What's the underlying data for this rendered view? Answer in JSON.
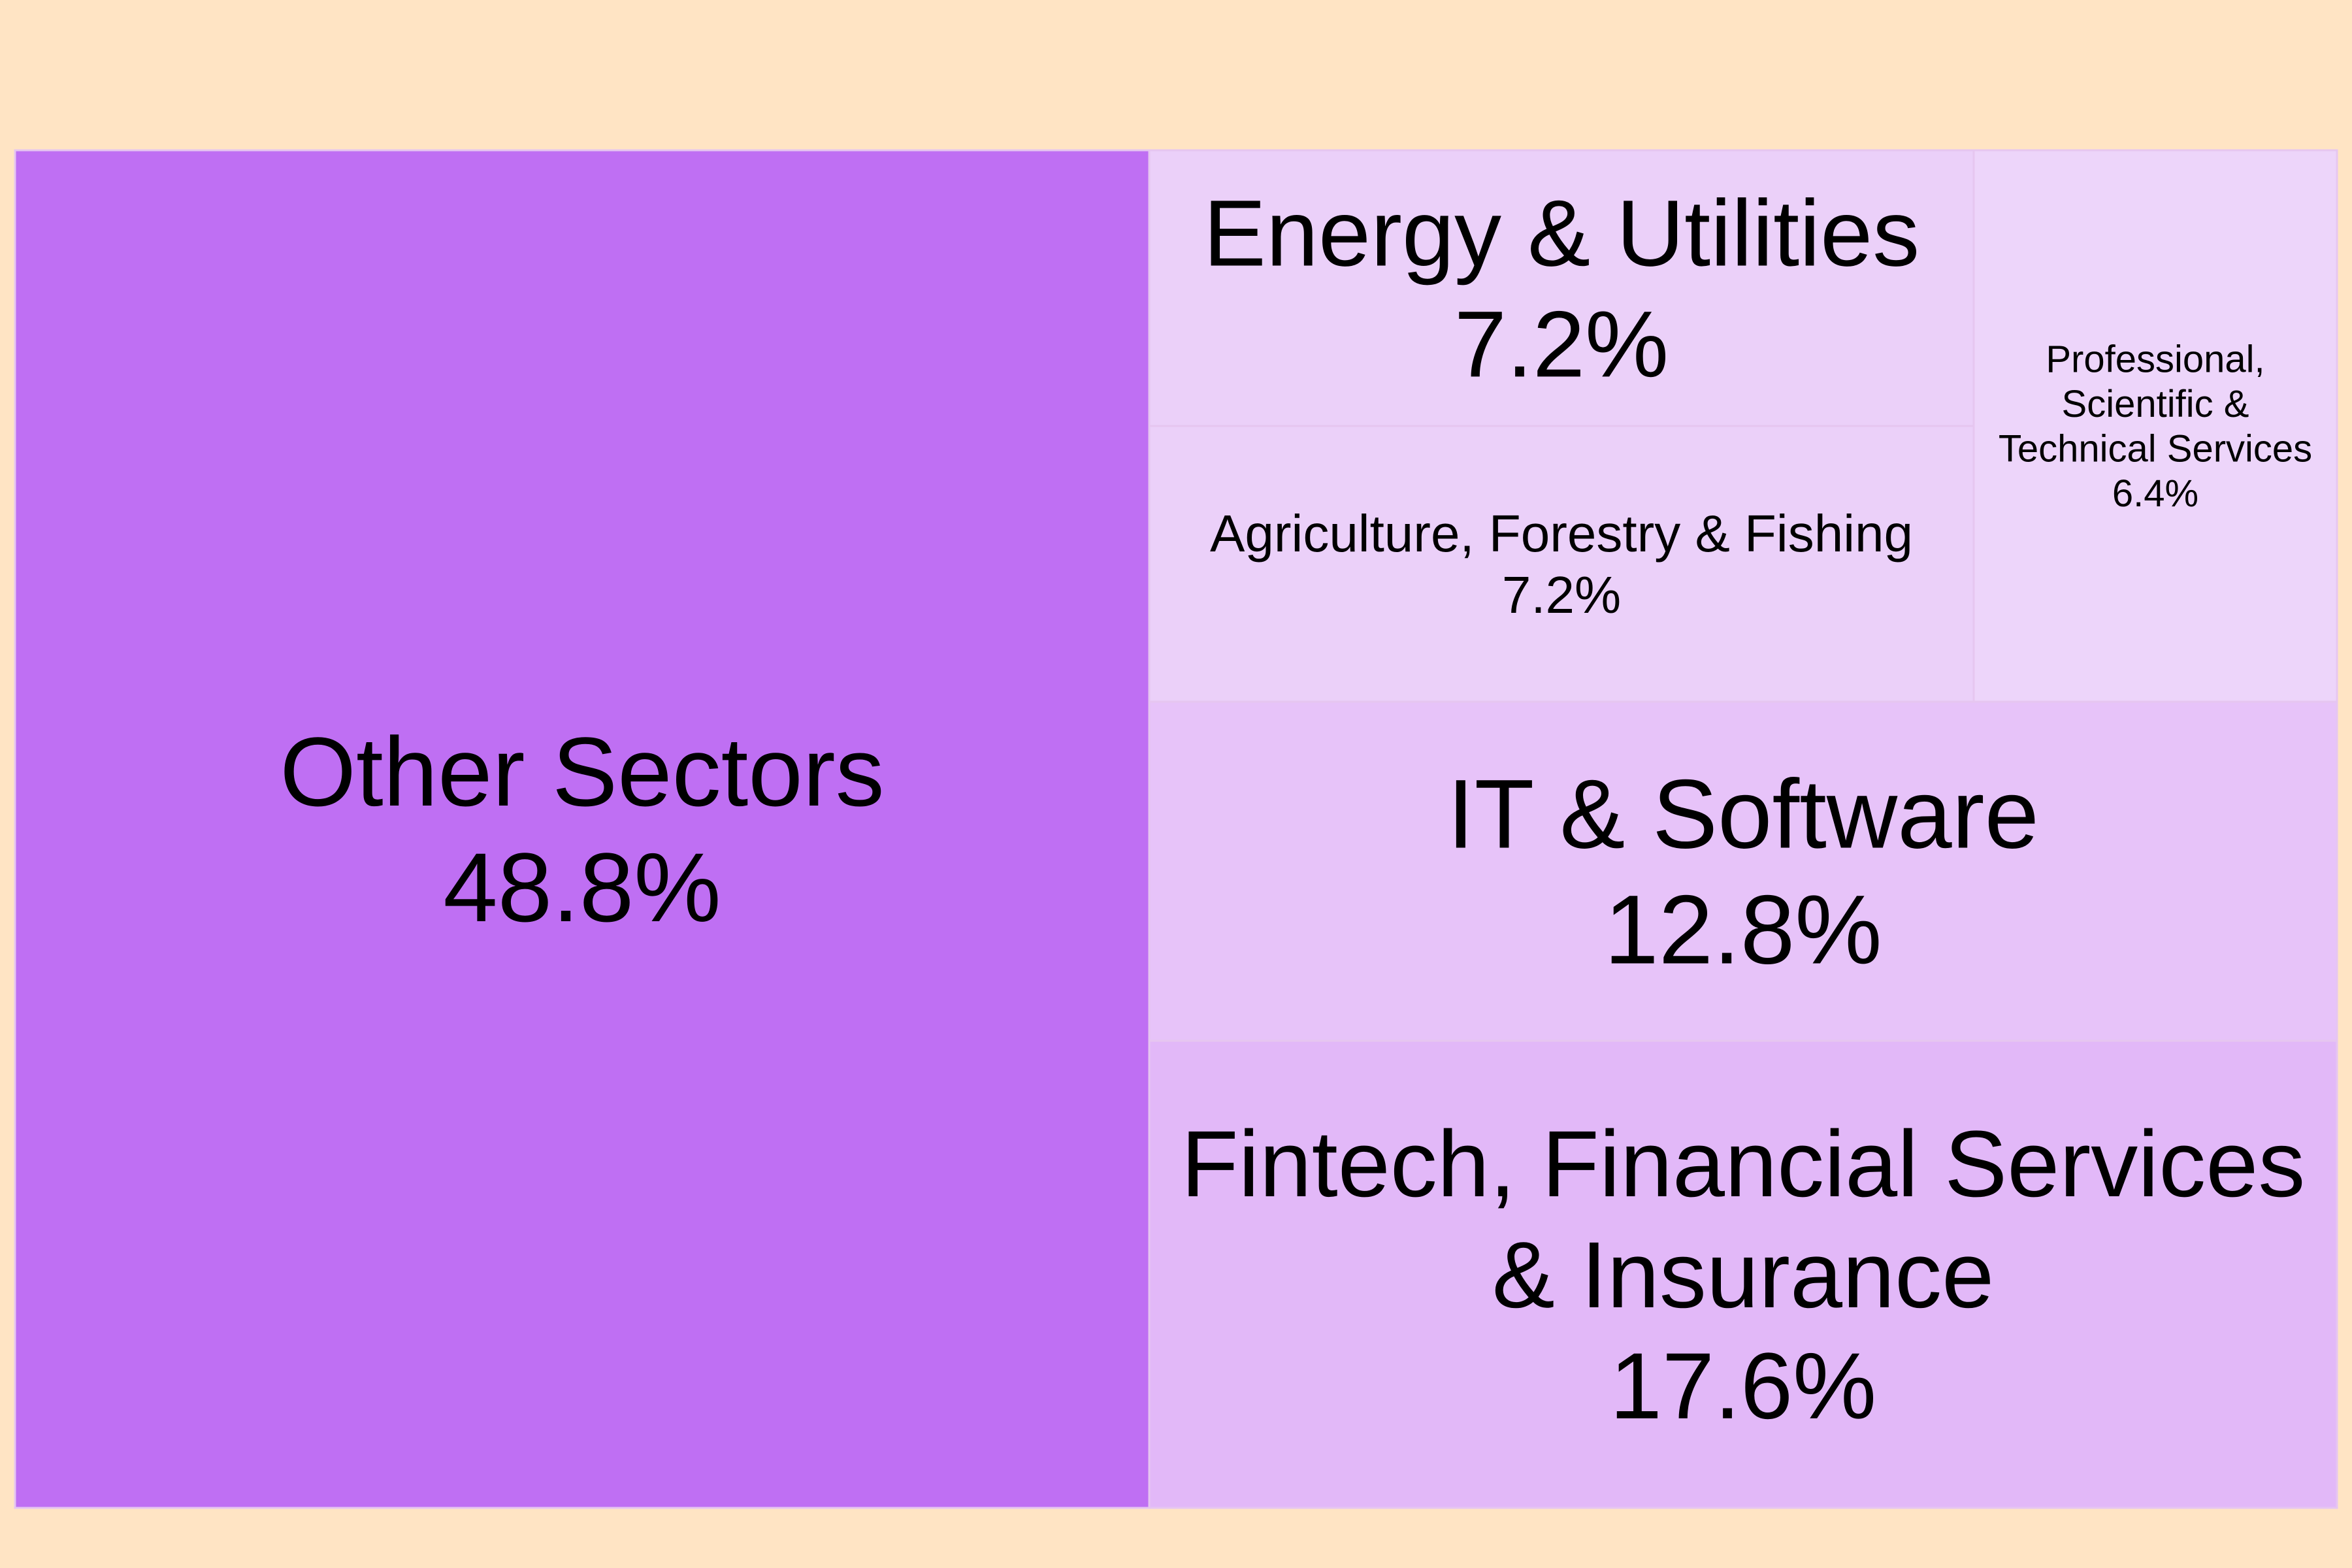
{
  "chart_data": {
    "type": "treemap",
    "title": "",
    "background_color": "#ffe4c4",
    "tiles": [
      {
        "label_lines": [
          "Other Sectors"
        ],
        "value_label": "48.8%",
        "value": 48.8,
        "color": "#bf6ff3"
      },
      {
        "label_lines": [
          "Fintech, Financial Services",
          "& Insurance"
        ],
        "value_label": "17.6%",
        "value": 17.6,
        "color": "#e2b8f8"
      },
      {
        "label_lines": [
          "IT & Software"
        ],
        "value_label": "12.8%",
        "value": 12.8,
        "color": "#e7c3f9"
      },
      {
        "label_lines": [
          "Energy & Utilities"
        ],
        "value_label": "7.2%",
        "value": 7.2,
        "color": "#ebd0f9"
      },
      {
        "label_lines": [
          "Agriculture, Forestry & Fishing"
        ],
        "value_label": "7.2%",
        "value": 7.2,
        "color": "#ebd0f9"
      },
      {
        "label_lines": [
          "Professional,",
          "Scientific &",
          "Technical Services"
        ],
        "value_label": "6.4%",
        "value": 6.4,
        "color": "#edd5fa"
      }
    ]
  }
}
